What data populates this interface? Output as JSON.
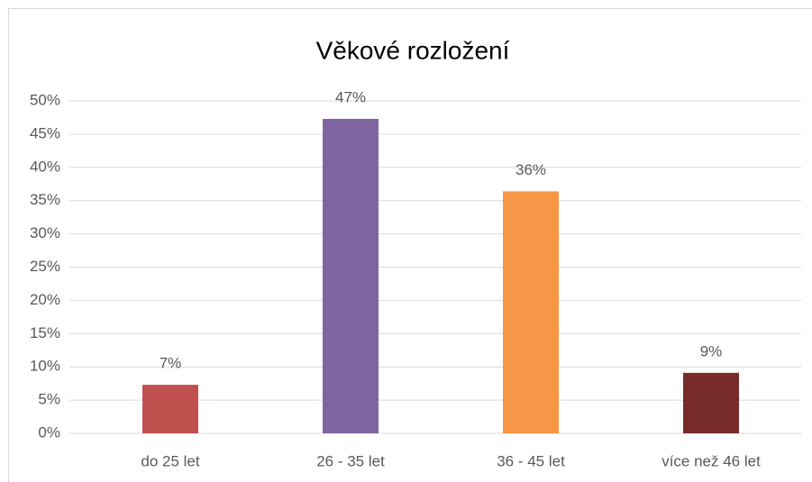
{
  "chart_data": {
    "type": "bar",
    "title": "Věkové rozložení",
    "categories": [
      "do 25 let",
      "26 - 35 let",
      "36 - 45 let",
      "více než 46 let"
    ],
    "values": [
      7.3,
      47.3,
      36.4,
      9.1
    ],
    "value_labels": [
      "7%",
      "47%",
      "36%",
      "9%"
    ],
    "colors": [
      "#c0504d",
      "#8064a2",
      "#f79646",
      "#772c2a"
    ],
    "ylim": [
      0,
      50
    ],
    "yticks": [
      {
        "value": 0,
        "label": "0%"
      },
      {
        "value": 5,
        "label": "5%"
      },
      {
        "value": 10,
        "label": "10%"
      },
      {
        "value": 15,
        "label": "15%"
      },
      {
        "value": 20,
        "label": "20%"
      },
      {
        "value": 25,
        "label": "25%"
      },
      {
        "value": 30,
        "label": "30%"
      },
      {
        "value": 35,
        "label": "35%"
      },
      {
        "value": 40,
        "label": "40%"
      },
      {
        "value": 45,
        "label": "45%"
      },
      {
        "value": 50,
        "label": "50%"
      }
    ],
    "grid": true
  }
}
